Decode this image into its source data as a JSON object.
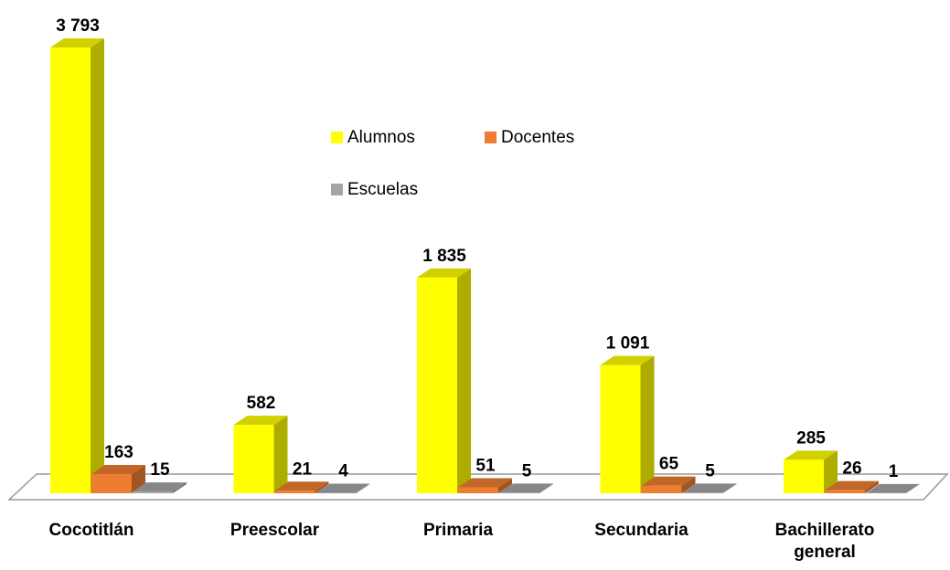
{
  "chart_data": {
    "type": "bar3d",
    "categories": [
      "Cocotitlán",
      "Preescolar",
      "Primaria",
      "Secundaria",
      "Bachillerato general"
    ],
    "series": [
      {
        "name": "Alumnos",
        "color": "#ffff00",
        "values": [
          3793,
          582,
          1835,
          1091,
          285
        ],
        "value_labels": [
          "3 793",
          "582",
          "1 835",
          "1 091",
          "285"
        ]
      },
      {
        "name": "Docentes",
        "color": "#ed7d31",
        "values": [
          163,
          21,
          51,
          65,
          26
        ]
      },
      {
        "name": "Escuelas",
        "color": "#a5a5a5",
        "values": [
          15,
          4,
          5,
          5,
          1
        ]
      }
    ],
    "legend": "top-center"
  }
}
